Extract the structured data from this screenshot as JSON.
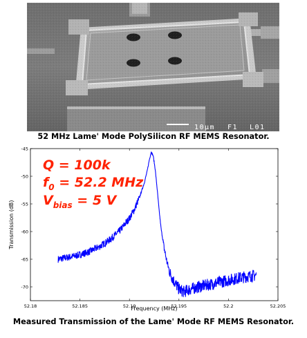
{
  "image": {
    "scale_bar_text": "10μm",
    "label_f1": "F1",
    "label_l01": "L01"
  },
  "captions": {
    "top": "52 MHz Lame' Mode PolySilicon RF MEMS Resonator.",
    "bottom": "Measured Transmission of the Lame' Mode RF MEMS Resonator."
  },
  "annotations": {
    "q": "Q = 100k",
    "f0_prefix": "f",
    "f0_sub": "0",
    "f0_rest": " = 52.2 MHz",
    "vbias_prefix": "V",
    "vbias_sub": "bias",
    "vbias_rest": " = 5 V"
  },
  "chart_data": {
    "type": "line",
    "xlabel": "Frequency (MHz)",
    "ylabel": "Transmission (dB)",
    "xlim": [
      52.18,
      52.205
    ],
    "ylim": [
      -72.5,
      -45
    ],
    "xticks": [
      52.18,
      52.185,
      52.19,
      52.195,
      52.2,
      52.205
    ],
    "yticks": [
      -45,
      -50,
      -55,
      -60,
      -65,
      -70
    ],
    "xtick_labels": [
      "52.18",
      "52.185",
      "52.19",
      "52.195",
      "52.2",
      "52.205"
    ],
    "ytick_labels": [
      "-45",
      "-50",
      "-55",
      "-60",
      "-65",
      "-70"
    ],
    "grid": false,
    "color": "#0000ff",
    "x": [
      52.1828,
      52.184,
      52.185,
      52.186,
      52.187,
      52.188,
      52.189,
      52.19,
      52.1905,
      52.191,
      52.1915,
      52.1918,
      52.192,
      52.1922,
      52.1924,
      52.1926,
      52.1928,
      52.193,
      52.1932,
      52.1935,
      52.1938,
      52.1941,
      52.1945,
      52.195,
      52.1955,
      52.196,
      52.197,
      52.198,
      52.199,
      52.2,
      52.201,
      52.202,
      52.2028
    ],
    "y": [
      -65.0,
      -64.6,
      -64.2,
      -63.6,
      -62.7,
      -61.5,
      -59.9,
      -57.6,
      -56.0,
      -53.9,
      -51.2,
      -49.0,
      -47.1,
      -45.6,
      -46.3,
      -48.7,
      -52.3,
      -56.2,
      -59.5,
      -63.0,
      -65.6,
      -67.5,
      -69.0,
      -70.4,
      -70.9,
      -70.5,
      -70.0,
      -69.6,
      -69.2,
      -68.8,
      -68.4,
      -68.1,
      -67.9
    ]
  }
}
